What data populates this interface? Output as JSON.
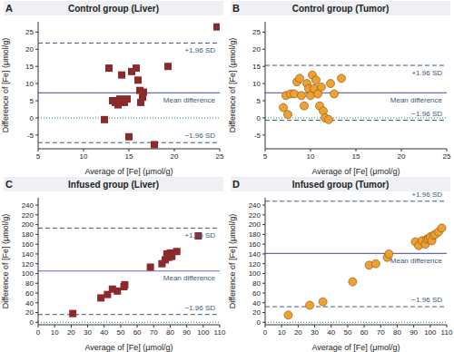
{
  "chart_data": [
    {
      "type": "scatter",
      "panel": "A",
      "title": "Control group (Liver)",
      "x_label": "Average of [Fe] (μmol/g)",
      "y_label": "Difference of [Fe] (μmol/g)",
      "xlim": [
        5,
        25
      ],
      "xticks": [
        5,
        10,
        15,
        20,
        25
      ],
      "ylim": [
        -9,
        28
      ],
      "yticks": [
        -5,
        0,
        5,
        10,
        15,
        20,
        25
      ],
      "grid": false,
      "color": "#8b2a2a",
      "marker": "square",
      "x": [
        12.3,
        12.8,
        13.2,
        13.5,
        13.8,
        14.0,
        14.2,
        14.5,
        14.8,
        15.0,
        15.3,
        15.8,
        16.0,
        16.2,
        16.3,
        16.5,
        16.6,
        17.8,
        19.3,
        24.7
      ],
      "values": [
        -0.5,
        14.5,
        5,
        4.5,
        3.8,
        5.5,
        12.5,
        4.5,
        5.5,
        -5.5,
        13.5,
        14.5,
        11,
        8,
        4.5,
        6,
        7.5,
        -7.8,
        15,
        26.5
      ],
      "reference_lines": [
        {
          "value": 21.8,
          "label": "+1.96 SD",
          "line_style": "dashed",
          "color": "#3d5a7a"
        },
        {
          "value": 7.3,
          "label": "Mean difference",
          "line_style": "solid",
          "color": "#6b6bb5"
        },
        {
          "value": -7.2,
          "label": "−1.96 SD",
          "line_style": "dashed",
          "color": "#3d5a7a"
        },
        {
          "value": 0,
          "line_style": "dotted",
          "color": "#2e8b57"
        }
      ]
    },
    {
      "type": "scatter",
      "panel": "B",
      "title": "Control group (Tumor)",
      "x_label": "Average of [Fe] (μmol/g)",
      "y_label": "Difference of [Fe] (μmol/g)",
      "xlim": [
        5,
        25
      ],
      "xticks": [
        5,
        10,
        15,
        20,
        25
      ],
      "ylim": [
        -9,
        28
      ],
      "yticks": [
        -5,
        0,
        5,
        10,
        15,
        20,
        25
      ],
      "grid": false,
      "color": "#f0a030",
      "marker": "circle",
      "x": [
        7.0,
        7.3,
        7.5,
        7.8,
        8.2,
        8.5,
        8.8,
        9.0,
        9.3,
        9.6,
        9.8,
        10.0,
        10.2,
        10.4,
        10.6,
        10.8,
        11.0,
        11.2,
        11.4,
        11.6,
        12.0,
        12.2,
        12.6,
        13.4
      ],
      "values": [
        3,
        6.5,
        1,
        7,
        7,
        10.5,
        11.5,
        6.5,
        3.5,
        10,
        8.5,
        6.5,
        12.5,
        8.5,
        11,
        7,
        3.5,
        9,
        2,
        0,
        -0.5,
        10,
        7,
        11.5
      ],
      "reference_lines": [
        {
          "value": 15.3,
          "label": "+1.96 SD",
          "line_style": "dashed",
          "color": "#3d5a7a"
        },
        {
          "value": 7.3,
          "label": "Mean difference",
          "line_style": "solid",
          "color": "#6b6bb5"
        },
        {
          "value": -0.7,
          "label": "−1.96 SD",
          "line_style": "dashed",
          "color": "#3d5a7a"
        },
        {
          "value": 0,
          "line_style": "dotted",
          "color": "#2e8b57"
        }
      ]
    },
    {
      "type": "scatter",
      "panel": "C",
      "title": "Infused group (Liver)",
      "x_label": "Average of [Fe] (μmol/g)",
      "y_label": "Difference of [Fe] (μmol/g)",
      "xlim": [
        0,
        110
      ],
      "xticks": [
        0,
        10,
        20,
        30,
        40,
        50,
        60,
        70,
        80,
        90,
        100,
        110
      ],
      "ylim": [
        -5,
        255
      ],
      "yticks": [
        0,
        20,
        40,
        60,
        80,
        100,
        120,
        140,
        160,
        180,
        200,
        220,
        240
      ],
      "grid": false,
      "color": "#8b2a2a",
      "marker": "square",
      "x": [
        21,
        38,
        42,
        45,
        48,
        52,
        52.5,
        68,
        75,
        77,
        78,
        79,
        80,
        80.5,
        81,
        84,
        97
      ],
      "values": [
        18,
        50,
        57,
        68,
        64,
        73,
        77,
        113,
        120,
        128,
        140,
        133,
        142,
        140,
        135,
        145,
        177
      ],
      "reference_lines": [
        {
          "value": 193,
          "label": "+1.96 SD",
          "line_style": "dashed",
          "color": "#3d5a7a"
        },
        {
          "value": 105,
          "label": "Mean difference",
          "line_style": "solid",
          "color": "#6b6bb5"
        },
        {
          "value": 16,
          "label": "−1.96 SD",
          "line_style": "dashed",
          "color": "#3d5a7a"
        },
        {
          "value": 0,
          "line_style": "dotted",
          "color": "#2e8b57"
        }
      ]
    },
    {
      "type": "scatter",
      "panel": "D",
      "title": "Infused group (Tumor)",
      "x_label": "Average of [Fe] (μmol/g)",
      "y_label": "Difference of [Fe] (μmol/g)",
      "xlim": [
        0,
        110
      ],
      "xticks": [
        0,
        10,
        20,
        30,
        40,
        50,
        60,
        70,
        80,
        90,
        100,
        110
      ],
      "ylim": [
        -5,
        255
      ],
      "yticks": [
        0,
        20,
        40,
        60,
        80,
        100,
        120,
        140,
        160,
        180,
        200,
        220,
        240
      ],
      "grid": false,
      "color": "#f0a030",
      "marker": "circle",
      "x": [
        14,
        27,
        35,
        53,
        63,
        67,
        74,
        75,
        91,
        93,
        95,
        97,
        98,
        99,
        100,
        101,
        102,
        103,
        105,
        107
      ],
      "values": [
        15,
        35,
        42,
        83,
        117,
        120,
        133,
        140,
        165,
        157,
        167,
        160,
        170,
        172,
        175,
        167,
        178,
        180,
        185,
        193
      ],
      "reference_lines": [
        {
          "value": 248,
          "label": "+1.96 SD",
          "line_style": "dashed",
          "color": "#3d5a7a"
        },
        {
          "value": 141,
          "label": "Mean difference",
          "line_style": "solid",
          "color": "#6b6bb5"
        },
        {
          "value": 32,
          "label": "−1.96 SD",
          "line_style": "dashed",
          "color": "#3d5a7a"
        },
        {
          "value": 0,
          "line_style": "dotted",
          "color": "#2e8b57"
        }
      ]
    }
  ]
}
